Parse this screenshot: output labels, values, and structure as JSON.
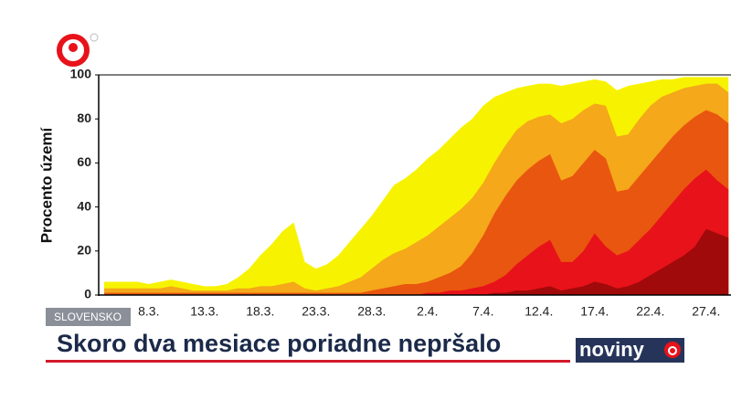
{
  "chart_data": {
    "type": "area",
    "ylabel": "Procento území",
    "categories": [
      null,
      null,
      null,
      null,
      "8.3.",
      null,
      null,
      null,
      null,
      "13.3.",
      null,
      null,
      null,
      null,
      "18.3.",
      null,
      null,
      null,
      null,
      "23.3.",
      null,
      null,
      null,
      null,
      "28.3.",
      null,
      null,
      null,
      null,
      "2.4.",
      null,
      null,
      null,
      null,
      "7.4.",
      null,
      null,
      null,
      null,
      "12.4.",
      null,
      null,
      null,
      null,
      "17.4.",
      null,
      null,
      null,
      null,
      "22.4.",
      null,
      null,
      null,
      null,
      "27.4.",
      null,
      null
    ],
    "series": [
      {
        "color": "#f7f300",
        "values": [
          6,
          6,
          6,
          6,
          5,
          6,
          7,
          6,
          5,
          4,
          4,
          5,
          8,
          12,
          18,
          23,
          29,
          33,
          15,
          12,
          14,
          18,
          24,
          30,
          36,
          43,
          50,
          53,
          57,
          62,
          66,
          71,
          76,
          80,
          86,
          90,
          92,
          94,
          95,
          96,
          96,
          95,
          96,
          97,
          98,
          97,
          93,
          95,
          96,
          97,
          98,
          98,
          99,
          99,
          99,
          99,
          99
        ]
      },
      {
        "color": "#f4a81a",
        "values": [
          3,
          3,
          3,
          3,
          3,
          3,
          4,
          3,
          2,
          2,
          2,
          2,
          3,
          3,
          4,
          4,
          5,
          6,
          3,
          2,
          3,
          4,
          6,
          8,
          12,
          16,
          19,
          21,
          24,
          27,
          31,
          35,
          39,
          44,
          51,
          60,
          68,
          75,
          79,
          81,
          82,
          78,
          80,
          84,
          87,
          86,
          72,
          73,
          80,
          86,
          90,
          92,
          94,
          95,
          96,
          96,
          92
        ]
      },
      {
        "color": "#e9560f",
        "values": [
          1,
          1,
          1,
          1,
          1,
          1,
          1,
          1,
          1,
          1,
          1,
          1,
          1,
          1,
          1,
          1,
          1,
          1,
          1,
          1,
          1,
          1,
          1,
          1,
          2,
          3,
          4,
          5,
          5,
          6,
          8,
          10,
          13,
          19,
          27,
          37,
          45,
          52,
          57,
          61,
          64,
          52,
          54,
          60,
          66,
          62,
          47,
          48,
          54,
          60,
          66,
          72,
          77,
          81,
          84,
          82,
          78
        ]
      },
      {
        "color": "#e8121a",
        "values": [
          0,
          0,
          0,
          0,
          0,
          0,
          0,
          0,
          0,
          0,
          0,
          0,
          0,
          0,
          0,
          0,
          0,
          0,
          0,
          0,
          0,
          0,
          0,
          0,
          0,
          0,
          0,
          0,
          0,
          1,
          1,
          2,
          2,
          3,
          4,
          6,
          9,
          14,
          18,
          22,
          25,
          15,
          15,
          20,
          28,
          22,
          18,
          20,
          25,
          30,
          36,
          42,
          48,
          53,
          57,
          52,
          48
        ]
      },
      {
        "color": "#a10a0a",
        "values": [
          0,
          0,
          0,
          0,
          0,
          0,
          0,
          0,
          0,
          0,
          0,
          0,
          0,
          0,
          0,
          0,
          0,
          0,
          0,
          0,
          0,
          0,
          0,
          0,
          0,
          0,
          0,
          0,
          0,
          0,
          0,
          0,
          0,
          0,
          0,
          1,
          1,
          2,
          2,
          3,
          4,
          2,
          3,
          4,
          6,
          5,
          3,
          4,
          6,
          9,
          12,
          15,
          18,
          22,
          30,
          28,
          26
        ]
      }
    ],
    "ylim": [
      0,
      100
    ],
    "yticks": [
      0,
      20,
      40,
      60,
      80,
      100
    ]
  },
  "overlay": {
    "section": "SLOVENSKO",
    "headline": "Skoro dva mesiace poriadne nepršalo",
    "brand": "noviny"
  }
}
